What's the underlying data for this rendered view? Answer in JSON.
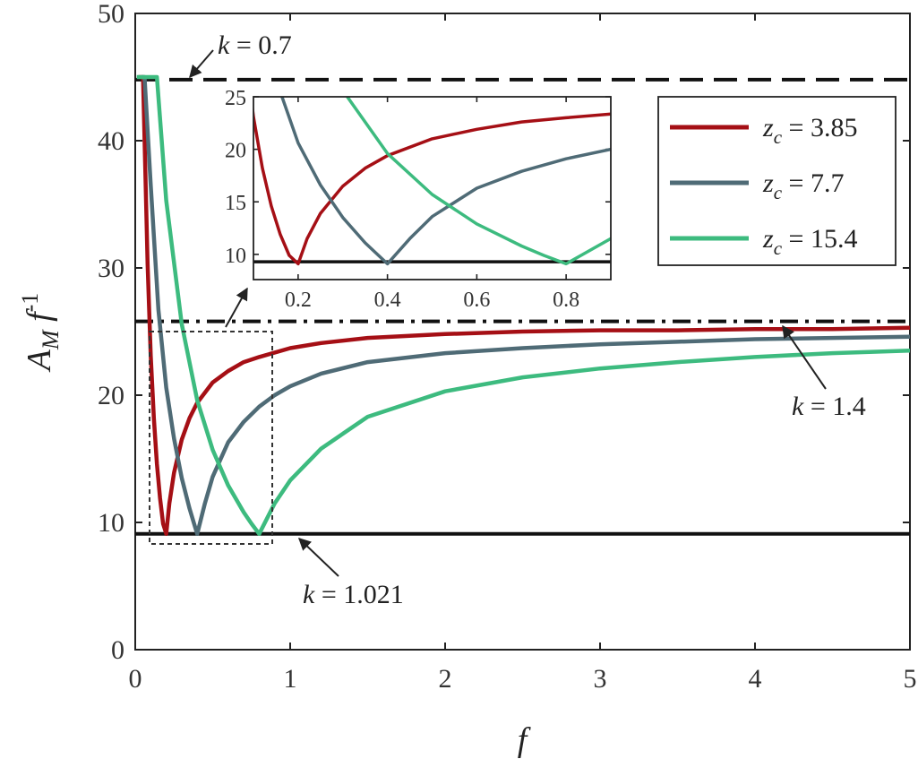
{
  "chart_data": [
    {
      "type": "line",
      "xlabel": "f",
      "ylabel": {
        "base": "A",
        "sub": "M",
        "mid": " f",
        "sup": "-1"
      },
      "xlim": [
        0,
        5
      ],
      "ylim": [
        0,
        50
      ],
      "xticks": [
        "0",
        "1",
        "2",
        "3",
        "4",
        "5"
      ],
      "yticks": [
        "0",
        "10",
        "20",
        "30",
        "40",
        "50"
      ],
      "legend": {
        "placement": "top-right",
        "entries": [
          {
            "var": "z",
            "sub": "c",
            "eq": " = ",
            "val": "3.85"
          },
          {
            "var": "z",
            "sub": "c",
            "eq": " = ",
            "val": "7.7"
          },
          {
            "var": "z",
            "sub": "c",
            "eq": " = ",
            "val": "15.4"
          }
        ]
      },
      "series": [
        {
          "color": "#A50F15",
          "zc": 3.85,
          "x": [
            0.02,
            0.05,
            0.08,
            0.1,
            0.12,
            0.14,
            0.16,
            0.18,
            0.19,
            0.2,
            0.22,
            0.25,
            0.3,
            0.35,
            0.4,
            0.5,
            0.6,
            0.7,
            0.8,
            1,
            1.2,
            1.5,
            2,
            2.5,
            3,
            3.5,
            4,
            4.5,
            5
          ],
          "y": [
            45,
            45,
            30.3,
            23.1,
            18.2,
            14.6,
            11.9,
            9.9,
            9.5,
            9.1,
            11.5,
            13.9,
            16.5,
            18.2,
            19.4,
            21,
            21.9,
            22.6,
            23,
            23.7,
            24.1,
            24.5,
            24.8,
            25,
            25.1,
            25.1,
            25.2,
            25.2,
            25.3
          ]
        },
        {
          "color": "#4F6B76",
          "zc": 7.7,
          "x": [
            0.04,
            0.06,
            0.1,
            0.15,
            0.2,
            0.25,
            0.3,
            0.35,
            0.38,
            0.4,
            0.45,
            0.5,
            0.6,
            0.7,
            0.8,
            0.9,
            1,
            1.2,
            1.5,
            2,
            2.5,
            3,
            3.5,
            4,
            4.5,
            5
          ],
          "y": [
            45,
            45,
            36.5,
            26.7,
            20.6,
            16.6,
            13.5,
            11.1,
            9.9,
            9.1,
            11.5,
            13.6,
            16.3,
            17.9,
            19.1,
            20,
            20.7,
            21.7,
            22.6,
            23.3,
            23.7,
            24,
            24.2,
            24.4,
            24.5,
            24.6
          ]
        },
        {
          "color": "#3DBB7F",
          "zc": 15.4,
          "x": [
            0.01,
            0.14,
            0.2,
            0.3,
            0.4,
            0.5,
            0.6,
            0.7,
            0.75,
            0.8,
            0.9,
            1,
            1.2,
            1.5,
            2,
            2.5,
            3,
            3.5,
            4,
            4.5,
            5
          ],
          "y": [
            45,
            45,
            35.3,
            25.6,
            19.6,
            15.7,
            12.9,
            10.8,
            9.9,
            9.1,
            11.5,
            13.3,
            15.8,
            18.3,
            20.3,
            21.4,
            22.1,
            22.6,
            23,
            23.3,
            23.5
          ]
        }
      ],
      "reference_lines": [
        {
          "y": 44.8,
          "style": "dashed",
          "label": {
            "var": "k",
            "text": " = 0.7"
          }
        },
        {
          "y": 25.8,
          "style": "dashdot",
          "label": {
            "var": "k",
            "text": " = 1.4"
          }
        },
        {
          "y": 9.1,
          "style": "solid",
          "label": {
            "var": "k",
            "text": " = 1.021"
          }
        }
      ]
    },
    {
      "type": "line",
      "inset": true,
      "xlim": [
        0.1,
        0.9
      ],
      "ylim": [
        7.6,
        25
      ],
      "xticks": [
        "0.2",
        "0.4",
        "0.6",
        "0.8"
      ],
      "yticks": [
        "10",
        "15",
        "20",
        "25"
      ],
      "xtick_values": [
        0.2,
        0.4,
        0.6,
        0.8
      ],
      "ytick_values": [
        10,
        15,
        20,
        25
      ],
      "reference_y": 9.3
    }
  ]
}
